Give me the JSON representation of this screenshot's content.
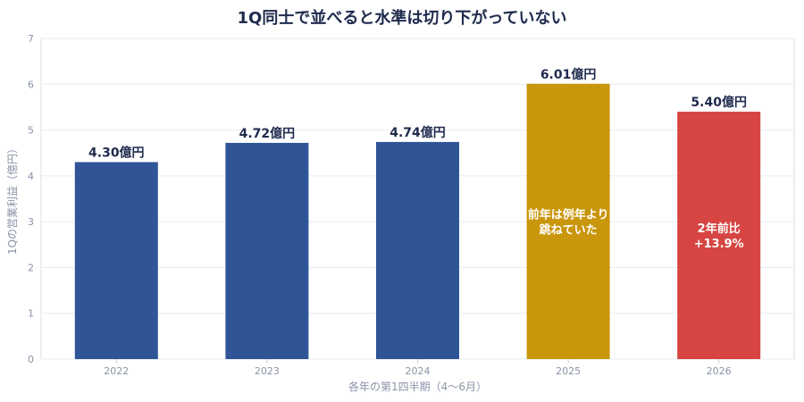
{
  "chart_data": {
    "type": "bar",
    "title": "1Q同士で並べると水準は切り下がっていない",
    "xlabel": "各年の第1四半期（4〜6月）",
    "ylabel": "1Qの営業利益（億円）",
    "categories": [
      "2022",
      "2023",
      "2024",
      "2025",
      "2026"
    ],
    "values": [
      4.3,
      4.72,
      4.74,
      6.01,
      5.4
    ],
    "value_labels": [
      "4.30億円",
      "4.72億円",
      "4.74億円",
      "6.01億円",
      "5.40億円"
    ],
    "bar_colors": [
      "#2f5597",
      "#2f5597",
      "#2f5597",
      "#c9960c",
      "#d64541"
    ],
    "inner_notes": [
      [],
      [],
      [],
      [
        "前年は例年より",
        "跳ねていた"
      ],
      [
        "2年前比",
        "+13.9%"
      ]
    ],
    "ylim": [
      0,
      7
    ],
    "yticks": [
      0,
      1,
      2,
      3,
      4,
      5,
      6,
      7
    ],
    "grid": true,
    "legend": "none"
  }
}
